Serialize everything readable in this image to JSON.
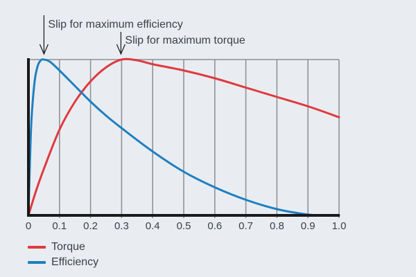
{
  "chart_data": {
    "type": "line",
    "title": "",
    "xlabel": "",
    "ylabel": "",
    "xlim": [
      0,
      1.0
    ],
    "ylim": [
      0,
      1.0
    ],
    "grid": "vertical",
    "x_ticks": [
      "0",
      "0.1",
      "0.2",
      "0.3",
      "0.4",
      "0.5",
      "0.6",
      "0.7",
      "0.8",
      "0.9",
      "1.0"
    ],
    "x_tick_values": [
      0,
      0.1,
      0.2,
      0.3,
      0.4,
      0.5,
      0.6,
      0.7,
      0.8,
      0.9,
      1.0
    ],
    "legend_placement": "bottom-left",
    "series": [
      {
        "name": "Torque",
        "color": "#e0393e",
        "points": [
          [
            0,
            0
          ],
          [
            0.025,
            0.16
          ],
          [
            0.05,
            0.3
          ],
          [
            0.1,
            0.55
          ],
          [
            0.15,
            0.73
          ],
          [
            0.2,
            0.86
          ],
          [
            0.25,
            0.95
          ],
          [
            0.3,
            1.0
          ],
          [
            0.35,
            0.995
          ],
          [
            0.4,
            0.97
          ],
          [
            0.5,
            0.93
          ],
          [
            0.6,
            0.88
          ],
          [
            0.7,
            0.82
          ],
          [
            0.8,
            0.76
          ],
          [
            0.9,
            0.7
          ],
          [
            1.0,
            0.63
          ]
        ]
      },
      {
        "name": "Efficiency",
        "color": "#1f7fc0",
        "points": [
          [
            0,
            0
          ],
          [
            0.005,
            0.35
          ],
          [
            0.01,
            0.62
          ],
          [
            0.02,
            0.86
          ],
          [
            0.03,
            0.96
          ],
          [
            0.04,
            0.995
          ],
          [
            0.05,
            1.0
          ],
          [
            0.07,
            0.985
          ],
          [
            0.1,
            0.93
          ],
          [
            0.15,
            0.83
          ],
          [
            0.2,
            0.73
          ],
          [
            0.25,
            0.64
          ],
          [
            0.3,
            0.56
          ],
          [
            0.4,
            0.41
          ],
          [
            0.5,
            0.28
          ],
          [
            0.6,
            0.18
          ],
          [
            0.7,
            0.1
          ],
          [
            0.8,
            0.04
          ],
          [
            0.9,
            0.005
          ],
          [
            0.95,
            0.0
          ],
          [
            1.0,
            0.0
          ]
        ]
      }
    ],
    "annotations": [
      {
        "text": "Slip for maximum efficiency",
        "x": 0.05
      },
      {
        "text": "Slip for maximum torque",
        "x": 0.3
      }
    ]
  }
}
